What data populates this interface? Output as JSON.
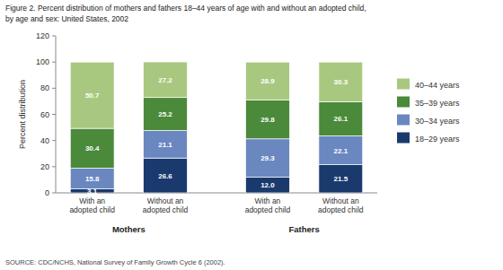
{
  "chart_data": {
    "type": "bar",
    "stacked": true,
    "data_labels": true,
    "grid": false,
    "legend": "right",
    "title": "Figure 2. Percent distribution of mothers and fathers 18–44 years of age with and without an adopted child,",
    "subtitle": "by age and sex: United States, 2002",
    "ylabel": "Percent distribution",
    "annotations": [
      "SOURCE: CDC/NCHS, National Survey of Family Growth Cycle 6 (2002)."
    ],
    "group_labels": [
      "Mothers",
      "Fathers"
    ],
    "categories": [
      "With an\nadopted child",
      "Without an\nadopted child",
      "With an\nadopted child",
      "Without an\nadopted child"
    ],
    "series": [
      {
        "name": "18–29 years",
        "color": "#1a3a6e",
        "values": [
          3.1,
          26.6,
          12.0,
          21.5
        ],
        "value_labels": [
          "3.1",
          "26.6",
          "12.0",
          "21.5"
        ]
      },
      {
        "name": "30–34 years",
        "color": "#6b87c0",
        "values": [
          15.8,
          21.1,
          29.3,
          22.1
        ]
      },
      {
        "name": "35–39 years",
        "color": "#4a8a3a",
        "values": [
          30.4,
          25.2,
          29.8,
          26.1
        ]
      },
      {
        "name": "40–44 years",
        "color": "#a8c880",
        "values": [
          50.7,
          27.2,
          28.9,
          30.3
        ]
      }
    ],
    "ylim": [
      0,
      120
    ],
    "yticks": [
      0,
      20,
      40,
      60,
      80,
      100,
      120
    ]
  }
}
